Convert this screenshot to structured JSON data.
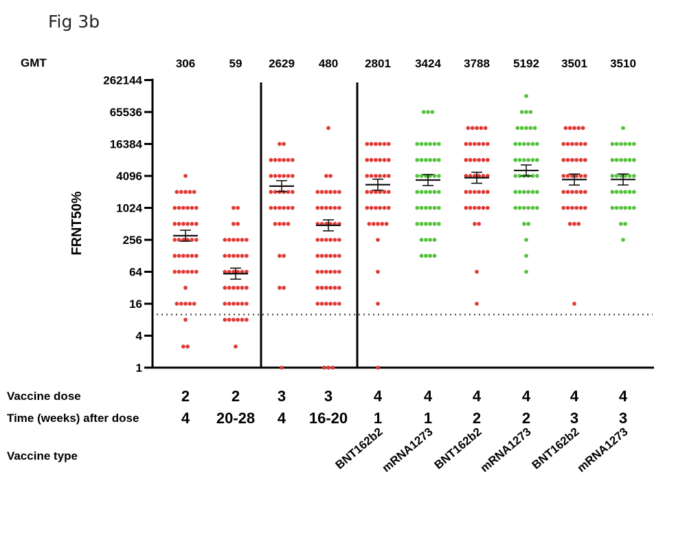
{
  "figure_label": "Fig 3b",
  "colors": {
    "bnt": "#e03a35",
    "mrna": "#56c23f",
    "axis": "#000000",
    "threshold": "#444444"
  },
  "chart_data": {
    "type": "scatter",
    "ylabel": "FRNT50%",
    "yscale": "log4",
    "ylim": [
      1,
      262144
    ],
    "yticks": [
      "1",
      "4",
      "16",
      "64",
      "256",
      "1024",
      "4096",
      "16384",
      "65536",
      "262144"
    ],
    "detection_threshold": 10,
    "gmt_label": "GMT",
    "row_labels": {
      "dose": "Vaccine dose",
      "time": "Time (weeks) after dose",
      "type": "Vaccine type"
    },
    "groups": [
      {
        "gmt": "306",
        "dose": "2",
        "time": "4",
        "type": "",
        "color": "bnt",
        "gmt_value": 306,
        "points": [
          [
            2.5,
            2
          ],
          [
            4096,
            1
          ],
          [
            2048,
            5
          ],
          [
            1024,
            6
          ],
          [
            512,
            6
          ],
          [
            256,
            6
          ],
          [
            128,
            6
          ],
          [
            64,
            6
          ],
          [
            32,
            1
          ],
          [
            16,
            5
          ],
          [
            8,
            1
          ]
        ]
      },
      {
        "gmt": "59",
        "dose": "2",
        "time": "20-28",
        "type": "",
        "color": "bnt",
        "gmt_value": 59,
        "points": [
          [
            2.5,
            1
          ],
          [
            8,
            6
          ],
          [
            16,
            6
          ],
          [
            32,
            6
          ],
          [
            64,
            6
          ],
          [
            128,
            6
          ],
          [
            256,
            6
          ],
          [
            512,
            2
          ],
          [
            1024,
            2
          ]
        ]
      },
      {
        "gmt": "2629",
        "dose": "3",
        "time": "4",
        "type": "",
        "color": "bnt",
        "gmt_value": 2629,
        "points": [
          [
            1,
            1
          ],
          [
            32,
            2
          ],
          [
            128,
            2
          ],
          [
            512,
            4
          ],
          [
            1024,
            6
          ],
          [
            2048,
            6
          ],
          [
            4096,
            6
          ],
          [
            8192,
            6
          ],
          [
            16384,
            2
          ]
        ]
      },
      {
        "gmt": "480",
        "dose": "3",
        "time": "16-20",
        "type": "",
        "color": "bnt",
        "gmt_value": 480,
        "points": [
          [
            1,
            3
          ],
          [
            16,
            6
          ],
          [
            32,
            6
          ],
          [
            64,
            6
          ],
          [
            128,
            6
          ],
          [
            256,
            6
          ],
          [
            512,
            6
          ],
          [
            1024,
            6
          ],
          [
            2048,
            6
          ],
          [
            4096,
            2
          ],
          [
            32768,
            1
          ]
        ]
      },
      {
        "gmt": "2801",
        "dose": "4",
        "time": "1",
        "type": "BNT162b2",
        "color": "bnt",
        "gmt_value": 2801,
        "points": [
          [
            1,
            1
          ],
          [
            16,
            1
          ],
          [
            64,
            1
          ],
          [
            256,
            1
          ],
          [
            512,
            5
          ],
          [
            1024,
            6
          ],
          [
            2048,
            6
          ],
          [
            4096,
            6
          ],
          [
            8192,
            6
          ],
          [
            16384,
            6
          ]
        ]
      },
      {
        "gmt": "3424",
        "dose": "4",
        "time": "1",
        "type": "mRNA1273",
        "color": "mrna",
        "gmt_value": 3424,
        "points": [
          [
            128,
            4
          ],
          [
            256,
            4
          ],
          [
            512,
            6
          ],
          [
            1024,
            6
          ],
          [
            2048,
            6
          ],
          [
            4096,
            6
          ],
          [
            8192,
            6
          ],
          [
            16384,
            6
          ],
          [
            65536,
            3
          ]
        ]
      },
      {
        "gmt": "3788",
        "dose": "4",
        "time": "2",
        "type": "BNT162b2",
        "color": "bnt",
        "gmt_value": 3788,
        "points": [
          [
            16,
            1
          ],
          [
            64,
            1
          ],
          [
            512,
            2
          ],
          [
            1024,
            6
          ],
          [
            2048,
            6
          ],
          [
            4096,
            6
          ],
          [
            8192,
            6
          ],
          [
            16384,
            6
          ],
          [
            32768,
            5
          ]
        ]
      },
      {
        "gmt": "5192",
        "dose": "4",
        "time": "2",
        "type": "mRNA1273",
        "color": "mrna",
        "gmt_value": 5192,
        "points": [
          [
            64,
            1
          ],
          [
            128,
            1
          ],
          [
            256,
            1
          ],
          [
            512,
            2
          ],
          [
            1024,
            6
          ],
          [
            2048,
            6
          ],
          [
            4096,
            6
          ],
          [
            8192,
            6
          ],
          [
            16384,
            6
          ],
          [
            32768,
            5
          ],
          [
            65536,
            3
          ],
          [
            131072,
            1
          ]
        ]
      },
      {
        "gmt": "3501",
        "dose": "4",
        "time": "3",
        "type": "BNT162b2",
        "color": "bnt",
        "gmt_value": 3501,
        "points": [
          [
            16,
            1
          ],
          [
            512,
            3
          ],
          [
            1024,
            6
          ],
          [
            2048,
            6
          ],
          [
            4096,
            6
          ],
          [
            8192,
            6
          ],
          [
            16384,
            6
          ],
          [
            32768,
            5
          ]
        ]
      },
      {
        "gmt": "3510",
        "dose": "4",
        "time": "3",
        "type": "mRNA1273",
        "color": "mrna",
        "gmt_value": 3510,
        "points": [
          [
            256,
            1
          ],
          [
            512,
            2
          ],
          [
            1024,
            6
          ],
          [
            2048,
            6
          ],
          [
            4096,
            6
          ],
          [
            8192,
            6
          ],
          [
            16384,
            6
          ],
          [
            32768,
            1
          ]
        ]
      }
    ]
  }
}
